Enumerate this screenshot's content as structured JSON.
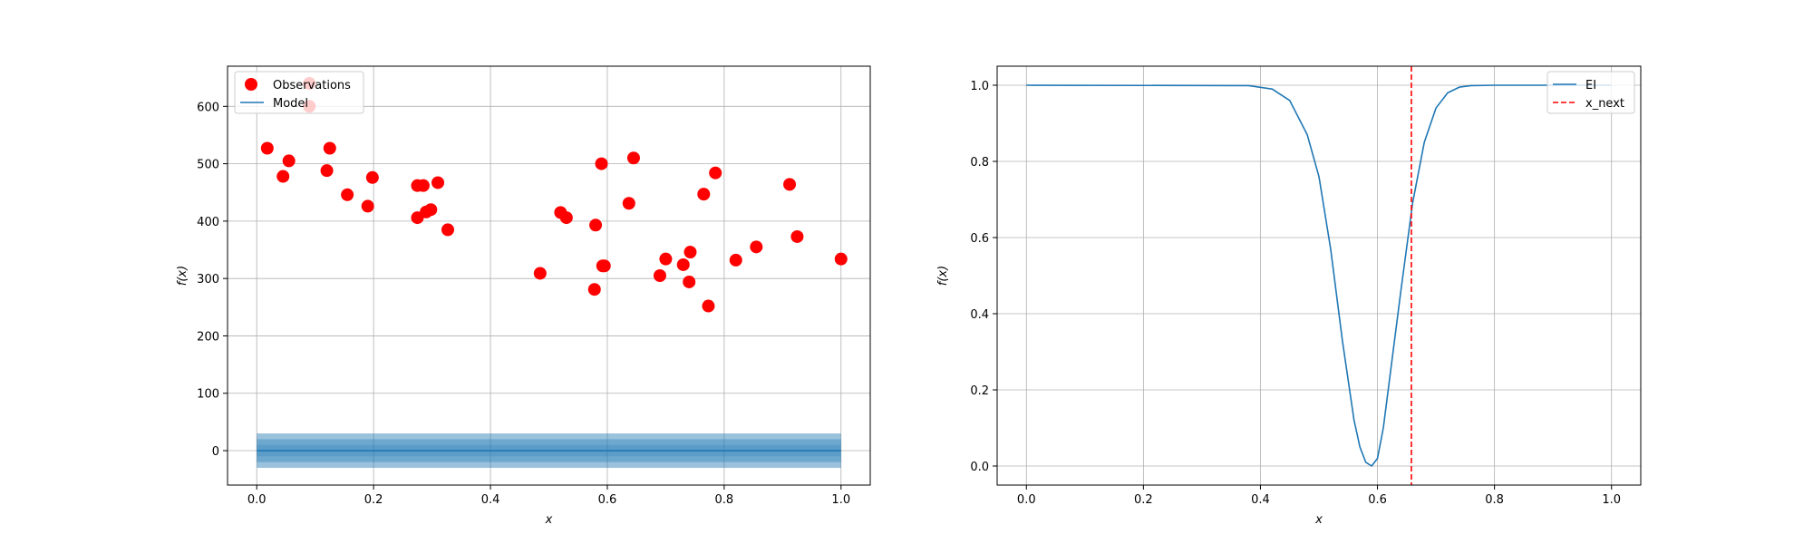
{
  "chart_data": [
    {
      "type": "scatter",
      "xlabel": "x",
      "ylabel": "f(x)",
      "xlim": [
        -0.05,
        1.05
      ],
      "ylim": [
        -60,
        670
      ],
      "xticks": [
        0.0,
        0.2,
        0.4,
        0.6,
        0.8,
        1.0
      ],
      "xtick_labels": [
        "0.0",
        "0.2",
        "0.4",
        "0.6",
        "0.8",
        "1.0"
      ],
      "yticks": [
        0,
        100,
        200,
        300,
        400,
        500,
        600
      ],
      "ytick_labels": [
        "0",
        "100",
        "200",
        "300",
        "400",
        "500",
        "600"
      ],
      "grid": true,
      "legend_position": "top-left",
      "series": [
        {
          "name": "Observations",
          "type": "scatter",
          "color": "#ff0000",
          "x": [
            0.018,
            0.045,
            0.055,
            0.09,
            0.09,
            0.12,
            0.125,
            0.155,
            0.19,
            0.198,
            0.275,
            0.275,
            0.285,
            0.29,
            0.298,
            0.31,
            0.327,
            0.485,
            0.52,
            0.53,
            0.578,
            0.58,
            0.59,
            0.592,
            0.595,
            0.637,
            0.645,
            0.69,
            0.7,
            0.73,
            0.74,
            0.742,
            0.765,
            0.773,
            0.785,
            0.82,
            0.855,
            0.912,
            0.925,
            1.0
          ],
          "y": [
            527,
            478,
            505,
            640,
            600,
            488,
            527,
            446,
            426,
            476,
            406,
            462,
            462,
            416,
            420,
            467,
            385,
            309,
            415,
            406,
            281,
            393,
            500,
            322,
            322,
            431,
            510,
            305,
            334,
            324,
            294,
            346,
            447,
            252,
            484,
            332,
            355,
            464,
            373,
            334
          ]
        },
        {
          "name": "Model",
          "type": "line",
          "color": "#1f77b4",
          "x": [
            0.0,
            1.0
          ],
          "y": [
            0,
            0
          ],
          "bands": [
            10,
            20,
            30
          ]
        }
      ]
    },
    {
      "type": "line",
      "xlabel": "x",
      "ylabel": "f(x)",
      "xlim": [
        -0.05,
        1.05
      ],
      "ylim": [
        -0.05,
        1.05
      ],
      "xticks": [
        0.0,
        0.2,
        0.4,
        0.6,
        0.8,
        1.0
      ],
      "xtick_labels": [
        "0.0",
        "0.2",
        "0.4",
        "0.6",
        "0.8",
        "1.0"
      ],
      "yticks": [
        0.0,
        0.2,
        0.4,
        0.6,
        0.8,
        1.0
      ],
      "ytick_labels": [
        "0.0",
        "0.2",
        "0.4",
        "0.6",
        "0.8",
        "1.0"
      ],
      "grid": true,
      "legend_position": "top-right",
      "series": [
        {
          "name": "EI",
          "type": "line",
          "color": "#1f77b4",
          "x": [
            0.0,
            0.38,
            0.42,
            0.45,
            0.48,
            0.5,
            0.52,
            0.54,
            0.56,
            0.57,
            0.58,
            0.59,
            0.6,
            0.61,
            0.62,
            0.64,
            0.66,
            0.68,
            0.7,
            0.72,
            0.74,
            0.76,
            0.8,
            1.0
          ],
          "y": [
            1.0,
            0.999,
            0.99,
            0.96,
            0.87,
            0.76,
            0.57,
            0.33,
            0.12,
            0.05,
            0.01,
            0.0,
            0.02,
            0.1,
            0.22,
            0.46,
            0.69,
            0.85,
            0.94,
            0.98,
            0.995,
            0.999,
            1.0,
            1.0
          ]
        },
        {
          "name": "x_next",
          "type": "vline",
          "color": "#ff0000",
          "x": 0.658
        }
      ]
    }
  ]
}
